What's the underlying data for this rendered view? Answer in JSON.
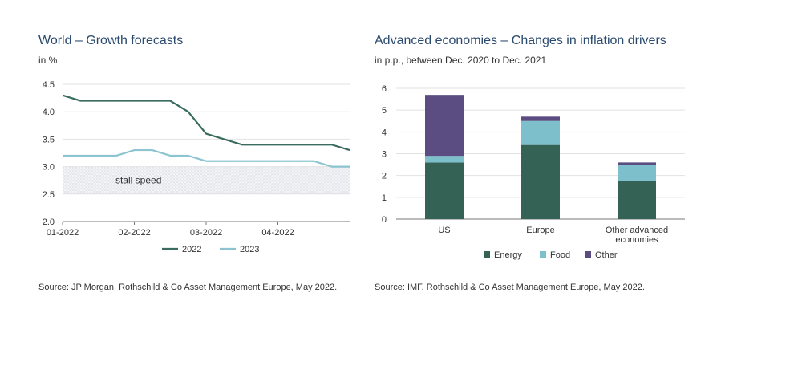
{
  "left": {
    "title": "World – Growth forecasts",
    "subtitle": "in %",
    "source": "Source: JP Morgan, Rothschild & Co Asset Management Europe, May 2022."
  },
  "right": {
    "title": "Advanced economies – Changes in inflation drivers",
    "subtitle": "in p.p., between Dec. 2020 to Dec. 2021",
    "source": "Source: IMF, Rothschild & Co Asset Management Europe, May 2022."
  },
  "chart_data": [
    {
      "type": "line",
      "title": "World – Growth forecasts",
      "ylabel": "in %",
      "ylim": [
        2.0,
        4.5
      ],
      "yticks": [
        "4.5",
        "4.0",
        "3.5",
        "3.0",
        "2.5",
        "2.0"
      ],
      "xlim": [
        0,
        16
      ],
      "xticks": [
        {
          "at": 0,
          "label": "01-2022"
        },
        {
          "at": 4,
          "label": "02-2022"
        },
        {
          "at": 8,
          "label": "03-2022"
        },
        {
          "at": 12,
          "label": "04-2022"
        }
      ],
      "band": {
        "label": "stall speed",
        "from": 2.5,
        "to": 3.0
      },
      "series": [
        {
          "name": "2022",
          "color": "#3a6b5f",
          "x": [
            0,
            1,
            2,
            3,
            4,
            5,
            6,
            7,
            8,
            9,
            10,
            11,
            12,
            13,
            14,
            15,
            16
          ],
          "values": [
            4.3,
            4.2,
            4.2,
            4.2,
            4.2,
            4.2,
            4.2,
            4.0,
            3.6,
            3.5,
            3.4,
            3.4,
            3.4,
            3.4,
            3.4,
            3.4,
            3.3
          ]
        },
        {
          "name": "2023",
          "color": "#8cc5d1",
          "x": [
            0,
            1,
            2,
            3,
            4,
            5,
            6,
            7,
            8,
            9,
            10,
            11,
            12,
            13,
            14,
            15,
            16
          ],
          "values": [
            3.2,
            3.2,
            3.2,
            3.2,
            3.3,
            3.3,
            3.2,
            3.2,
            3.1,
            3.1,
            3.1,
            3.1,
            3.1,
            3.1,
            3.1,
            3.0,
            3.0
          ]
        }
      ]
    },
    {
      "type": "bar",
      "stacked": true,
      "title": "Advanced economies – Changes in inflation drivers",
      "ylabel": "in p.p., between Dec. 2020 to Dec. 2021",
      "ylim": [
        0,
        6
      ],
      "yticks": [
        "0",
        "1",
        "2",
        "3",
        "4",
        "5",
        "6"
      ],
      "categories": [
        "US",
        "Europe",
        "Other advanced economies"
      ],
      "category_lines": [
        [
          "US"
        ],
        [
          "Europe"
        ],
        [
          "Other advanced",
          "economies"
        ]
      ],
      "series": [
        {
          "name": "Energy",
          "color": "#346356",
          "values": [
            2.6,
            3.4,
            1.75
          ]
        },
        {
          "name": "Food",
          "color": "#7dbfcb",
          "values": [
            0.3,
            1.1,
            0.72
          ]
        },
        {
          "name": "Other",
          "color": "#5b4d82",
          "values": [
            2.8,
            0.2,
            0.13
          ]
        }
      ]
    }
  ]
}
